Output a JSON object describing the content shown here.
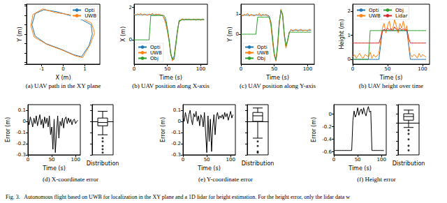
{
  "caption": "Fig. 3.   Autonomous flight based on UWB for localization in the XY plane and a 1D lidar for height estimation. For the height error, only the lidar data w",
  "chart_data": [
    {
      "type": "line",
      "title": "(a) UAV path in the XY plane",
      "xlabel": "X (m)",
      "ylabel": "Y (m)",
      "xlim": [
        -1.7,
        1.7
      ],
      "xticks": [
        -1,
        0,
        1
      ],
      "ylim": [
        -1.6,
        1.6
      ],
      "tick_labels": "x",
      "grid": false,
      "legend": "upper right",
      "series": [
        {
          "name": "Opti",
          "color": "#1f77b4",
          "x": [
            0.85,
            1.2,
            1.35,
            1.3,
            0.9,
            0.3,
            -0.3,
            -0.9,
            -1.3,
            -1.45,
            -1.3,
            -0.8,
            -0.1,
            0.5,
            0.85
          ],
          "values": [
            -1.2,
            -0.6,
            0,
            0.5,
            0.75,
            1,
            1.2,
            1.3,
            1.1,
            0.5,
            -0.1,
            -0.5,
            -0.8,
            -1.1,
            -1.2
          ]
        },
        {
          "name": "UWB",
          "color": "#ff7f0e",
          "x": [
            0.9,
            1.25,
            1.45,
            1.4,
            1.3,
            0.95,
            0.25,
            -0.35,
            -0.95,
            -1.4,
            -1.5,
            -1.35,
            -0.75,
            -0.05,
            0.55,
            0.9
          ],
          "values": [
            -1.25,
            -0.55,
            0.05,
            0.3,
            0.6,
            0.8,
            1.05,
            1.15,
            1.35,
            1.05,
            0.45,
            -0.15,
            -0.55,
            -0.85,
            -1.15,
            -1.25
          ]
        }
      ]
    },
    {
      "type": "line",
      "title": "(b) UAV position along X-axis",
      "xlabel": "Time (s)",
      "ylabel": "X (m)",
      "xlim": [
        0,
        110
      ],
      "xticks": [
        0,
        50,
        100
      ],
      "ylim": [
        -1.5,
        2.2
      ],
      "yticks": [
        0,
        2
      ],
      "grid": false,
      "legend": "lower left",
      "x": [
        0,
        2.5,
        5,
        7.5,
        10,
        12.5,
        15,
        17.5,
        20,
        22.5,
        25,
        27.5,
        30,
        32.5,
        35,
        37.5,
        40,
        42.5,
        45,
        47.5,
        50,
        52.5,
        55,
        57.5,
        60,
        62.5,
        65,
        67.5,
        70,
        72.5,
        75,
        77.5,
        80,
        82.5,
        85,
        87.5,
        90,
        92.5,
        95,
        97.5,
        100,
        102.5,
        105
      ],
      "series": [
        {
          "name": "Opti",
          "color": "#1f77b4",
          "values": [
            1.55,
            1.55,
            1.55,
            1.55,
            1.55,
            1.55,
            1.55,
            1.55,
            1.55,
            1.55,
            1.55,
            1.55,
            1.55,
            1.55,
            1.55,
            1.55,
            1.55,
            1.5,
            1.35,
            1.1,
            0.6,
            0,
            -0.8,
            -1.2,
            -1,
            -0.2,
            0.6,
            1.1,
            1.2,
            1.25,
            1.25,
            1.25,
            1.25,
            1.25,
            1.25,
            1.25,
            1.25,
            1.25,
            1.25,
            1.25,
            1.25,
            1.25,
            1.25
          ]
        },
        {
          "name": "UWB",
          "color": "#ff7f0e",
          "values": [
            1.6,
            1.5,
            1.6,
            1.55,
            1.65,
            1.5,
            1.6,
            1.55,
            1.5,
            1.6,
            1.55,
            1.65,
            1.5,
            1.6,
            1.55,
            1.6,
            1.5,
            1.55,
            1.3,
            1,
            0.5,
            -0.1,
            -0.9,
            -1.3,
            -1.1,
            -0.3,
            0.5,
            1.15,
            1.25,
            1.3,
            1.2,
            1.3,
            1.25,
            1.3,
            1.2,
            1.25,
            1.3,
            1.2,
            1.3,
            1.25,
            1.2,
            1.3,
            1.25
          ]
        },
        {
          "name": "Obj",
          "color": "#2ca02c",
          "values": [
            0,
            0,
            0,
            0,
            0,
            0,
            0,
            0,
            0,
            0,
            1.5,
            1.5,
            1.5,
            1.5,
            1.5,
            1.5,
            1.5,
            1.5,
            1.5,
            1.3,
            0.7,
            0,
            -0.9,
            -1.2,
            -1.2,
            -0.4,
            0.5,
            1.2,
            1.2,
            1.25,
            1.25,
            1.25,
            1.25,
            1.25,
            1.25,
            1.25,
            1.25,
            1.25,
            1.25,
            1.25,
            1.25,
            1.25,
            1.25
          ]
        }
      ]
    },
    {
      "type": "line",
      "title": "(c) UAV position along Y-axis",
      "xlabel": "Time (s)",
      "ylabel": "Y (m)",
      "xlim": [
        0,
        110
      ],
      "xticks": [
        0,
        50,
        100
      ],
      "ylim": [
        -1.5,
        1.5
      ],
      "yticks": [
        0,
        1
      ],
      "grid": false,
      "legend": "lower left",
      "x": [
        0,
        2.5,
        5,
        7.5,
        10,
        12.5,
        15,
        17.5,
        20,
        22.5,
        25,
        27.5,
        30,
        32.5,
        35,
        37.5,
        40,
        42.5,
        45,
        47.5,
        50,
        52.5,
        55,
        57.5,
        60,
        62.5,
        65,
        67.5,
        70,
        72.5,
        75,
        77.5,
        80,
        82.5,
        85,
        87.5,
        90,
        92.5,
        95,
        97.5,
        100,
        102.5,
        105
      ],
      "series": [
        {
          "name": "Opti",
          "color": "#1f77b4",
          "values": [
            0.95,
            0.95,
            0.95,
            0.95,
            0.95,
            0.95,
            0.95,
            0.95,
            0.95,
            0.95,
            0.95,
            0.95,
            0.95,
            0.95,
            0.95,
            0.95,
            0.95,
            0.9,
            0.5,
            -0.3,
            -1,
            -1.3,
            -0.6,
            0.6,
            1.2,
            0.9,
            0,
            -0.6,
            -0.3,
            0.1,
            0.2,
            0.2,
            0.2,
            0.2,
            0.2,
            0.2,
            0.2,
            0.2,
            0.2,
            0.2,
            0.2,
            0.2,
            0.2
          ]
        },
        {
          "name": "UWB",
          "color": "#ff7f0e",
          "values": [
            1,
            0.9,
            1,
            0.95,
            1.05,
            0.9,
            1,
            0.95,
            0.9,
            1,
            0.95,
            1.05,
            0.9,
            1,
            0.95,
            1,
            0.9,
            0.85,
            0.4,
            -0.4,
            -1.1,
            -1.35,
            -0.7,
            0.5,
            1.25,
            0.95,
            -0.1,
            -0.7,
            -0.35,
            0.05,
            0.25,
            0.15,
            0.2,
            0.25,
            0.15,
            0.2,
            0.25,
            0.15,
            0.2,
            0.2,
            0.15,
            0.25,
            0.2
          ]
        },
        {
          "name": "Obj",
          "color": "#2ca02c",
          "values": [
            0,
            0,
            0,
            0,
            0,
            0,
            0,
            0,
            0,
            0,
            0.85,
            0.85,
            0.85,
            0.85,
            0.85,
            0.85,
            0.85,
            0.85,
            0.6,
            -0.2,
            -1,
            -1.3,
            -0.5,
            0.6,
            1.2,
            1,
            0,
            -0.6,
            -0.3,
            0.1,
            0.1,
            0.1,
            0.1,
            0.1,
            0.1,
            0.1,
            0.1,
            0.1,
            0.1,
            0.1,
            0.1,
            0.1,
            0.1
          ]
        }
      ]
    },
    {
      "type": "line",
      "title": "(b) UAV height over time",
      "xlabel": "Time (s)",
      "ylabel": "Height (m)",
      "xlim": [
        0,
        110
      ],
      "xticks": [
        0,
        50,
        100
      ],
      "ylim": [
        -0.2,
        2.3
      ],
      "yticks": [
        0,
        1,
        2
      ],
      "grid": false,
      "legend": "upper left",
      "x": [
        0,
        2.5,
        5,
        7.5,
        10,
        12.5,
        15,
        17.5,
        20,
        22.5,
        25,
        27.5,
        30,
        32.5,
        35,
        37.5,
        40,
        42.5,
        45,
        47.5,
        50,
        52.5,
        55,
        57.5,
        60,
        62.5,
        65,
        67.5,
        70,
        72.5,
        75,
        77.5,
        80,
        82.5,
        85,
        87.5,
        90,
        92.5,
        95,
        97.5,
        100,
        102.5,
        105
      ],
      "series": [
        {
          "name": "Opti",
          "color": "#1f77b4",
          "values": [
            0,
            0,
            0,
            0,
            0,
            0,
            0,
            0,
            0,
            0,
            0,
            0,
            0,
            0,
            0,
            0,
            0.6,
            1.2,
            1.2,
            1.2,
            1.2,
            1.2,
            1.2,
            1.2,
            1.2,
            1.2,
            1.2,
            1.2,
            1.2,
            1.2,
            1.2,
            1.2,
            0.6,
            0,
            0,
            0,
            0,
            0,
            0,
            0,
            0,
            0,
            0
          ]
        },
        {
          "name": "UWB",
          "color": "#ff7f0e",
          "values": [
            0.1,
            0.2,
            0.05,
            0.15,
            0.25,
            0.1,
            0.05,
            0.2,
            0.15,
            0.1,
            0.3,
            0.05,
            0.2,
            0.1,
            0.15,
            0.25,
            0.8,
            1.3,
            1.5,
            1.1,
            1.4,
            1.6,
            1.2,
            1.3,
            1.65,
            1.4,
            1.1,
            1.5,
            1.3,
            1.6,
            1.2,
            1.4,
            0.7,
            0.2,
            0.1,
            0.2,
            0.15,
            0.05,
            0.25,
            0.1,
            0.2,
            0.15,
            0.1
          ]
        },
        {
          "name": "Obj",
          "color": "#2ca02c",
          "values": [
            0,
            0,
            0,
            0,
            0,
            0,
            0,
            0,
            0,
            0,
            1.2,
            1.2,
            1.2,
            1.2,
            1.2,
            1.2,
            1.2,
            1.2,
            1.2,
            1.2,
            1.2,
            1.2,
            1.2,
            1.2,
            1.2,
            1.2,
            1.2,
            1.2,
            1.2,
            1.2,
            1.2,
            1.2,
            1.2,
            1.2,
            1.2,
            1.2,
            1.2,
            1.2,
            1.2,
            1.2,
            1.2,
            1.2,
            1.2
          ]
        },
        {
          "name": "Lidar",
          "color": "#d62728",
          "values": [
            0.68,
            0.68,
            0.68,
            0.68,
            0.68,
            0.68,
            0.68,
            0.68,
            0.68,
            0.68,
            0.68,
            0.68,
            0.68,
            0.68,
            0.68,
            0.68,
            0.9,
            1.2,
            1.25,
            1.2,
            1.3,
            1.22,
            1.28,
            1.2,
            1.35,
            1.25,
            1.2,
            1.3,
            1.22,
            1.28,
            1.2,
            1.25,
            0.9,
            0.68,
            0.68,
            0.68,
            0.68,
            0.68,
            0.68,
            0.68,
            0.68,
            0.68,
            0.68
          ]
        }
      ]
    },
    {
      "type": "line",
      "title": "(d) X-coordinate error",
      "xlabel": "Time (s)",
      "ylabel": "Error (m)",
      "xlim": [
        0,
        110
      ],
      "xticks": [
        0,
        50,
        100
      ],
      "ylim": [
        -0.3,
        0.15
      ],
      "yticks": [
        -0.3,
        -0.2,
        -0.1,
        0,
        0.1
      ],
      "grid": false,
      "color": "#000000",
      "x": [
        0,
        2.5,
        5,
        7.5,
        10,
        12.5,
        15,
        17.5,
        20,
        22.5,
        25,
        27.5,
        30,
        32.5,
        35,
        37.5,
        40,
        42.5,
        45,
        47.5,
        50,
        52.5,
        55,
        57.5,
        60,
        62.5,
        65,
        67.5,
        70,
        72.5,
        75,
        77.5,
        80,
        82.5,
        85,
        87.5,
        90,
        92.5,
        95,
        97.5,
        100,
        102.5,
        105
      ],
      "values": [
        0.02,
        -0.03,
        0.04,
        0,
        -0.05,
        0.03,
        -0.02,
        0.05,
        -0.04,
        0.01,
        0.06,
        -0.03,
        0.02,
        -0.06,
        0.04,
        -0.02,
        0.03,
        -0.05,
        0.05,
        -0.12,
        -0.05,
        -0.25,
        0.02,
        -0.28,
        -0.1,
        0.05,
        -0.15,
        0,
        -0.04,
        0.03,
        -0.06,
        0.02,
        0.04,
        -0.02,
        0.03,
        -0.01,
        0.02,
        -0.03,
        0.01,
        0.02,
        -0.02,
        0,
        0.01
      ]
    },
    {
      "type": "boxplot",
      "xlabel": "Distribution",
      "ylim": [
        -0.3,
        0.15
      ],
      "tick_labels": false,
      "grid": false,
      "box": {
        "min": -0.12,
        "q1": -0.04,
        "median": -0.01,
        "q3": 0.03,
        "max": 0.09
      },
      "outliers": [
        -0.15,
        -0.18,
        -0.22,
        -0.25,
        -0.28
      ]
    },
    {
      "type": "line",
      "title": "(e) Y-coordinate error",
      "xlabel": "Time (s)",
      "ylabel": "Error (m)",
      "xlim": [
        0,
        110
      ],
      "xticks": [
        0,
        50,
        100
      ],
      "ylim": [
        -0.3,
        0.15
      ],
      "yticks": [
        -0.3,
        -0.2,
        -0.1,
        0,
        0.1
      ],
      "grid": false,
      "color": "#000000",
      "x": [
        0,
        2.5,
        5,
        7.5,
        10,
        12.5,
        15,
        17.5,
        20,
        22.5,
        25,
        27.5,
        30,
        32.5,
        35,
        37.5,
        40,
        42.5,
        45,
        47.5,
        50,
        52.5,
        55,
        57.5,
        60,
        62.5,
        65,
        67.5,
        70,
        72.5,
        75,
        77.5,
        80,
        82.5,
        85,
        87.5,
        90,
        92.5,
        95,
        97.5,
        100,
        102.5,
        105
      ],
      "values": [
        0.05,
        0,
        0.08,
        0.03,
        -0.02,
        0.06,
        0.1,
        0.02,
        -0.03,
        0.07,
        0.04,
        0.09,
        0,
        0.05,
        -0.04,
        0.06,
        0.03,
        -0.05,
        0.08,
        -0.1,
        -0.28,
        0.05,
        -0.18,
        0.02,
        -0.27,
        -0.05,
        0.06,
        -0.12,
        0.04,
        0.08,
        0.02,
        0.05,
        0.03,
        0.06,
        0.02,
        0.08,
        0.04,
        0.07,
        0.01,
        0.05,
        0.09,
        0.03,
        0.06
      ]
    },
    {
      "type": "boxplot",
      "xlabel": "Distribution",
      "ylim": [
        -0.3,
        0.15
      ],
      "tick_labels": false,
      "grid": false,
      "box": {
        "min": -0.15,
        "q1": 0,
        "median": 0.05,
        "q3": 0.08,
        "max": 0.12
      },
      "outliers": [
        -0.18,
        -0.22,
        -0.27,
        -0.28
      ]
    },
    {
      "type": "line",
      "title": "(f) Height error",
      "xlabel": "Time (s)",
      "ylabel": "Error (m)",
      "xlim": [
        0,
        110
      ],
      "xticks": [
        0,
        50,
        100
      ],
      "ylim": [
        -0.65,
        0.15
      ],
      "yticks": [
        -0.6,
        -0.4,
        -0.2,
        0
      ],
      "grid": false,
      "color": "#000000",
      "x": [
        0,
        2.5,
        5,
        7.5,
        10,
        12.5,
        15,
        17.5,
        20,
        22.5,
        25,
        27.5,
        30,
        32.5,
        35,
        37.5,
        40,
        42.5,
        45,
        47.5,
        50,
        52.5,
        55,
        57.5,
        60,
        62.5,
        65,
        67.5,
        70,
        72.5,
        75,
        77.5,
        80,
        82.5,
        85,
        87.5,
        90,
        92.5,
        95,
        97.5,
        100,
        102.5,
        105
      ],
      "values": [
        -0.58,
        -0.58,
        -0.58,
        -0.58,
        -0.58,
        -0.58,
        -0.58,
        -0.58,
        -0.58,
        -0.58,
        -0.58,
        -0.58,
        -0.58,
        -0.58,
        -0.58,
        -0.58,
        -0.1,
        0.05,
        -0.05,
        0,
        0.1,
        -0.02,
        0.05,
        0.08,
        0,
        0.1,
        0.02,
        -0.03,
        0.06,
        0.12,
        0.03,
        0.05,
        -0.58,
        -0.58,
        -0.58,
        -0.58,
        -0.58,
        -0.58,
        -0.58,
        -0.58,
        -0.58,
        -0.58,
        -0.58
      ]
    },
    {
      "type": "boxplot",
      "xlabel": "Distribution",
      "ylim": [
        -0.35,
        0.2
      ],
      "tick_labels": false,
      "grid": false,
      "box": {
        "min": -0.05,
        "q1": 0.03,
        "median": 0.07,
        "q3": 0.1,
        "max": 0.14
      },
      "outliers": [
        -0.08,
        -0.12,
        -0.18,
        -0.25,
        -0.3
      ]
    }
  ]
}
